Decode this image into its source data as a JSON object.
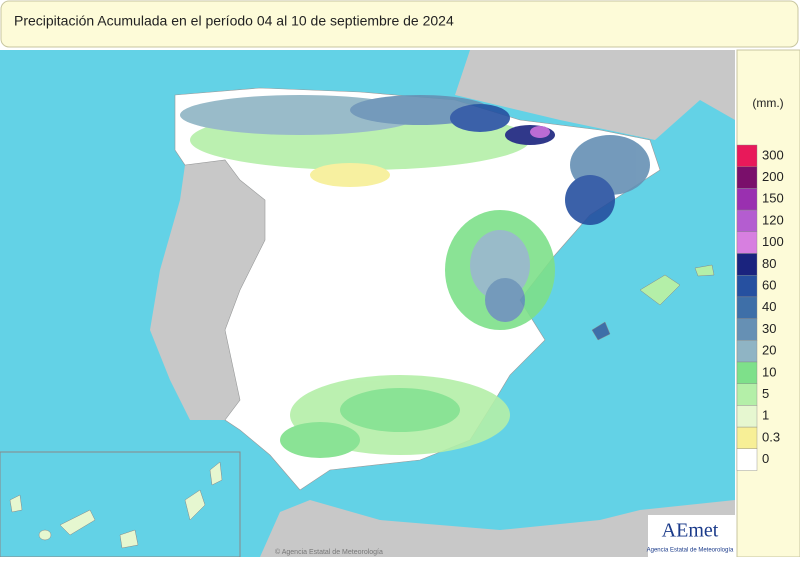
{
  "header": {
    "title": "Precipitación Acumulada en el período 04 al 10 de septiembre de 2024"
  },
  "legend": {
    "unit": "(mm.)",
    "items": [
      {
        "value": 300,
        "color": "#e8195a"
      },
      {
        "value": 200,
        "color": "#7a0f6b"
      },
      {
        "value": 150,
        "color": "#9a30b0"
      },
      {
        "value": 120,
        "color": "#b45dd0"
      },
      {
        "value": 100,
        "color": "#d77fe0"
      },
      {
        "value": 80,
        "color": "#1a237e"
      },
      {
        "value": 60,
        "color": "#2650a0"
      },
      {
        "value": 40,
        "color": "#3e6fa8"
      },
      {
        "value": 30,
        "color": "#6690b4"
      },
      {
        "value": 20,
        "color": "#8fb4c4"
      },
      {
        "value": 10,
        "color": "#7ee08a"
      },
      {
        "value": 5,
        "color": "#b4efa8"
      },
      {
        "value": 1,
        "color": "#e6f7d0"
      },
      {
        "value": 0.3,
        "color": "#f7ef96"
      },
      {
        "value": 0,
        "color": "#ffffff"
      }
    ]
  },
  "logo": {
    "name": "AEmet",
    "subtitle": "Agencia Estatal de Meteorología"
  },
  "credit": "© Agencia Estatal de Meteorología"
}
